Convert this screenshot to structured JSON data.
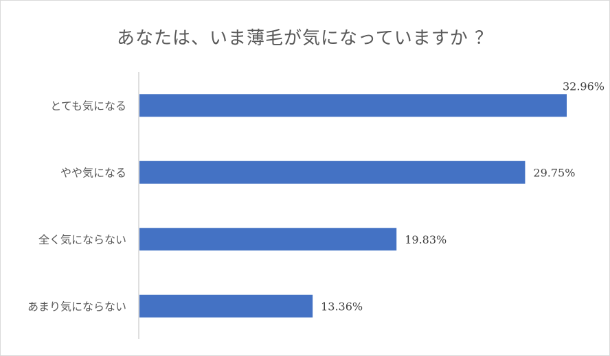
{
  "chart_data": {
    "type": "bar",
    "orientation": "horizontal",
    "title": "あなたは、いま薄毛が気になっていますか ？",
    "categories": [
      "とても気になる",
      "やや気になる",
      "全く気にならない",
      "あまり気にならない"
    ],
    "values": [
      32.96,
      29.75,
      19.83,
      13.36
    ],
    "value_labels": [
      "32.96%",
      "29.75%",
      "19.83%",
      "13.36%"
    ],
    "xlim": [
      0,
      35
    ],
    "grid": false,
    "legend": "none",
    "bar_color": "#4472c4"
  }
}
